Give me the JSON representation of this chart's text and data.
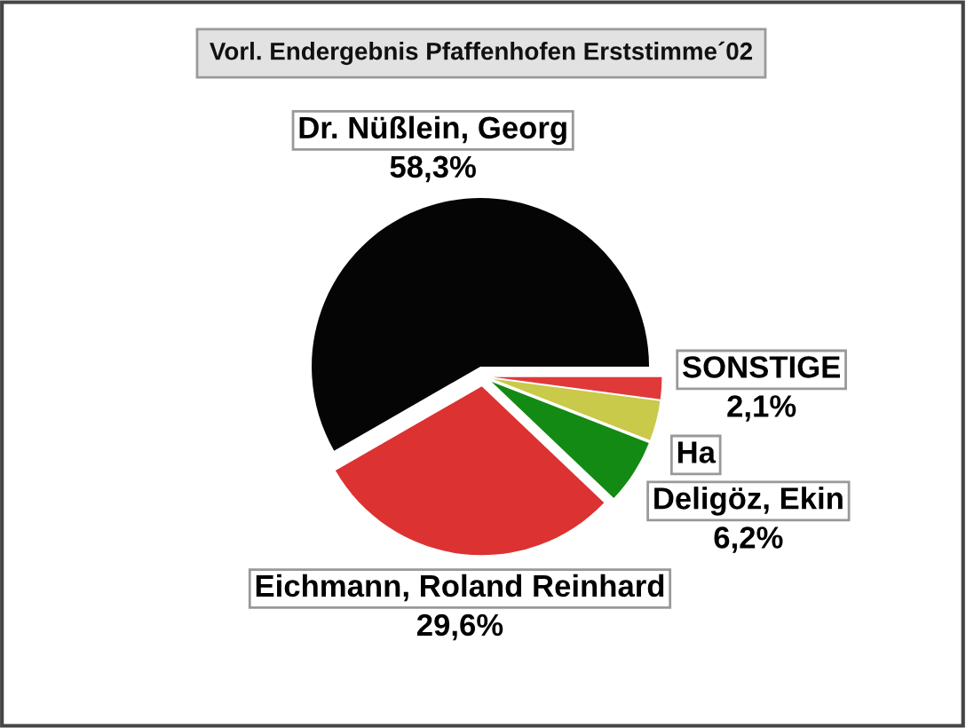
{
  "chart_data": {
    "type": "pie",
    "title": "Vorl. Endergebnis Pfaffenhofen Erststimme´02",
    "categories": [
      "Dr. Nüßlein, Georg",
      "Eichmann, Roland Reinhard",
      "Deligöz, Ekin",
      "Ha",
      "SONSTIGE"
    ],
    "values": [
      58.3,
      29.6,
      6.2,
      3.8,
      2.1
    ],
    "colors": [
      "#050505",
      "#dc3232",
      "#138a13",
      "#c9c94a",
      "#e0393a"
    ],
    "value_labels": [
      "58,3%",
      "29,6%",
      "6,2%",
      null,
      "2,1%"
    ]
  }
}
